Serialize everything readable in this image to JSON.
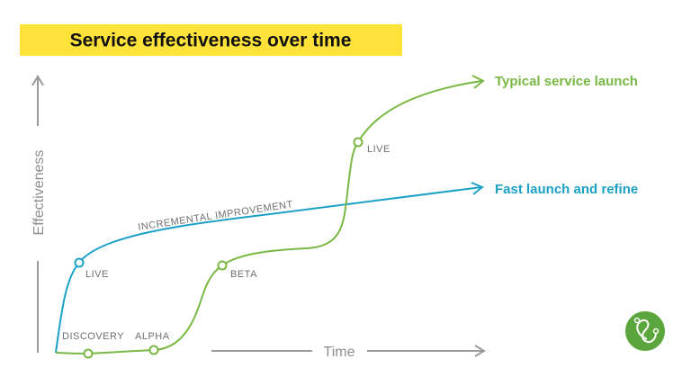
{
  "title": "Service effectiveness over time",
  "axes": {
    "y": "Effectiveness",
    "x": "Time"
  },
  "lines": [
    {
      "label": "Typical service launch",
      "stages": [
        "DISCOVERY",
        "ALPHA",
        "BETA",
        "LIVE"
      ]
    },
    {
      "label": "Fast launch and refine",
      "stages": [
        "LIVE"
      ],
      "annotation": "INCREMENTAL IMPROVEMENT"
    }
  ]
}
